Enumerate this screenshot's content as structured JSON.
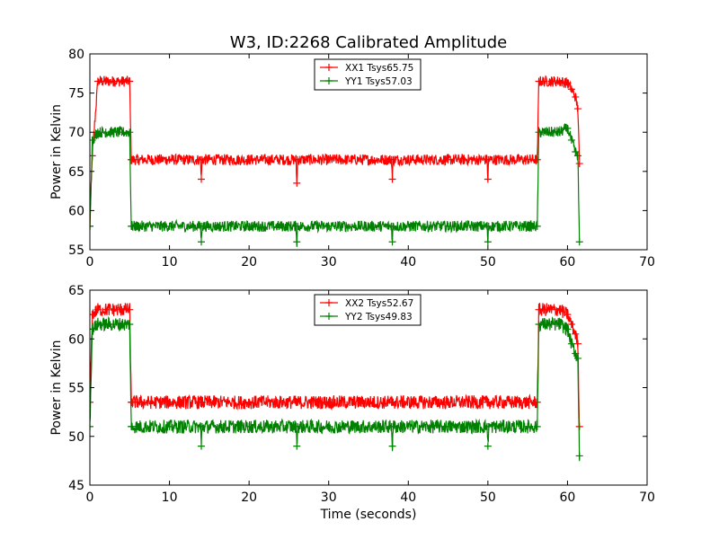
{
  "figure_title": "W3, ID:2268 Calibrated Amplitude",
  "chart_data": [
    {
      "type": "line",
      "title": "W3, ID:2268 Calibrated Amplitude",
      "xlabel": "",
      "ylabel": "Power in Kelvin",
      "xlim": [
        0,
        70
      ],
      "ylim": [
        55,
        80
      ],
      "x_ticks": [
        "0",
        "10",
        "20",
        "30",
        "40",
        "50",
        "60",
        "70"
      ],
      "y_ticks": [
        "55",
        "60",
        "65",
        "70",
        "75",
        "80"
      ],
      "grid": false,
      "legend_position": "top-center",
      "marker": "+",
      "series": [
        {
          "name": "XX1 Tsys65.75",
          "color": "#ff0000",
          "x": [
            0,
            0.3,
            1,
            2,
            3,
            4,
            5,
            5.2,
            5.3,
            6,
            10,
            13.9,
            14,
            14.1,
            20,
            25.9,
            26,
            26.1,
            30,
            37.9,
            38,
            38.1,
            45,
            49.9,
            50,
            50.1,
            55,
            56.2,
            56.4,
            57,
            58,
            59,
            60,
            60.5,
            61,
            61.3,
            61.5
          ],
          "y": [
            58,
            67,
            76.5,
            76.5,
            76.5,
            76.5,
            76.5,
            66.5,
            66.5,
            66.5,
            66.5,
            66.5,
            64,
            66.5,
            66.5,
            66.5,
            63.5,
            66.5,
            66.5,
            66.5,
            64,
            66.5,
            66.5,
            66.5,
            64,
            66.5,
            66.5,
            66.5,
            76.5,
            76.5,
            76.5,
            76.5,
            76.3,
            75.5,
            74.5,
            73,
            66
          ]
        },
        {
          "name": "YY1 Tsys57.03",
          "color": "#008000",
          "x": [
            0,
            0.3,
            1,
            2,
            3,
            4,
            5,
            5.2,
            5.3,
            6,
            10,
            13.9,
            14,
            14.1,
            20,
            25.9,
            26,
            26.1,
            30,
            37.9,
            38,
            38.1,
            45,
            49.9,
            50,
            50.1,
            55,
            56.2,
            56.4,
            57,
            58,
            59,
            60,
            60.5,
            61,
            61.3,
            61.5
          ],
          "y": [
            58,
            69,
            70,
            70,
            70,
            70,
            70,
            58,
            58,
            58,
            58,
            58,
            56,
            58,
            58,
            58,
            56,
            58,
            58,
            58,
            56,
            58,
            58,
            58,
            56,
            58,
            58,
            58,
            70,
            70,
            70,
            70,
            70.5,
            69,
            67.5,
            67,
            56
          ]
        }
      ]
    },
    {
      "type": "line",
      "title": "",
      "xlabel": "Time (seconds)",
      "ylabel": "Power in Kelvin",
      "xlim": [
        0,
        70
      ],
      "ylim": [
        45,
        65
      ],
      "x_ticks": [
        "0",
        "10",
        "20",
        "30",
        "40",
        "50",
        "60",
        "70"
      ],
      "y_ticks": [
        "45",
        "50",
        "55",
        "60",
        "65"
      ],
      "grid": false,
      "legend_position": "top-center",
      "marker": "+",
      "series": [
        {
          "name": "XX2 Tsys52.67",
          "color": "#ff0000",
          "x": [
            0,
            0.3,
            1,
            2,
            3,
            4,
            5,
            5.2,
            5.3,
            6,
            10,
            13.9,
            14,
            14.1,
            20,
            25.9,
            26,
            26.1,
            30,
            37.9,
            38,
            38.1,
            45,
            49.9,
            50,
            50.1,
            55,
            56.2,
            56.4,
            57,
            58,
            59,
            60,
            60.5,
            61,
            61.3,
            61.5
          ],
          "y": [
            53.5,
            62.5,
            63,
            63,
            63,
            63,
            63,
            53.5,
            53.5,
            53.5,
            53.5,
            53.5,
            53.5,
            53.5,
            53.5,
            53.5,
            53.5,
            53.5,
            53.5,
            53.5,
            53.5,
            53.5,
            53.5,
            53.5,
            53.5,
            53.5,
            53.5,
            53.5,
            63,
            63,
            63,
            63,
            62.5,
            61.5,
            60.5,
            59.5,
            51
          ]
        },
        {
          "name": "YY2 Tsys49.83",
          "color": "#008000",
          "x": [
            0,
            0.3,
            1,
            2,
            3,
            4,
            5,
            5.2,
            5.3,
            6,
            10,
            13.9,
            14,
            14.1,
            20,
            25.9,
            26,
            26.1,
            30,
            37.9,
            38,
            38.1,
            45,
            49.9,
            50,
            50.1,
            55,
            56.2,
            56.4,
            57,
            58,
            59,
            60,
            60.5,
            61,
            61.3,
            61.5
          ],
          "y": [
            51,
            61,
            61.5,
            61.5,
            61.5,
            61.5,
            61.5,
            51,
            51,
            51,
            51,
            51,
            49,
            51,
            51,
            51,
            49,
            51,
            51,
            51,
            49,
            51,
            51,
            51,
            49,
            51,
            51,
            51,
            61.5,
            61.5,
            61.5,
            61.5,
            61,
            59.5,
            58.5,
            58,
            48
          ]
        }
      ]
    }
  ]
}
